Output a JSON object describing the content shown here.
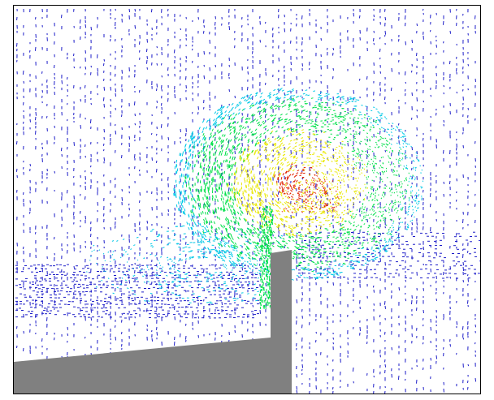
{
  "figure": {
    "type": "cfd-velocity-vector-field",
    "colormap": [
      "#1c1cc8",
      "#00c8e6",
      "#00e04a",
      "#e8e800",
      "#e02000"
    ],
    "background": "#ffffff",
    "frame_color": "#000000",
    "geometry_color": "#808080"
  }
}
